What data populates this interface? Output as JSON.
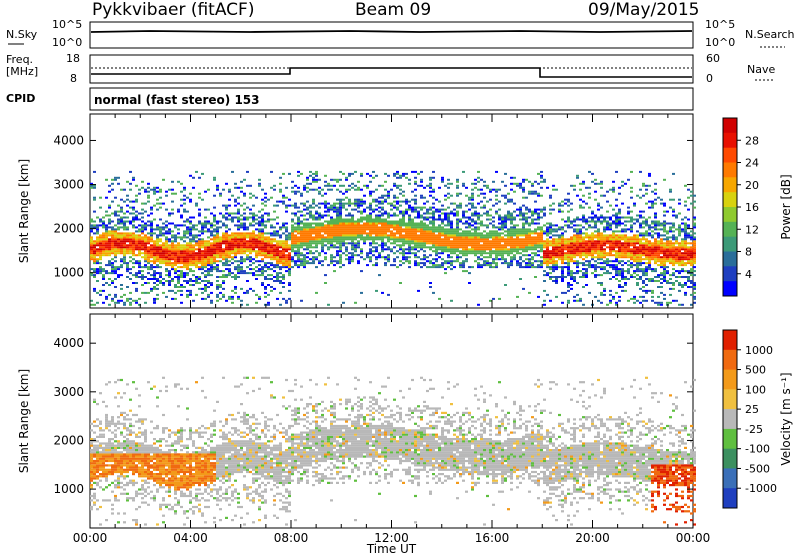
{
  "header": {
    "station": "Pykkvibaer (fitACF)",
    "beam": "Beam 09",
    "date": "09/May/2015"
  },
  "status_panels": {
    "nsky_label": "N.Sky",
    "nsky_ticks": [
      "10^5",
      "10^0"
    ],
    "nsearch_label": "N.Search",
    "nsearch_ticks": [
      "10^5",
      "10^0"
    ],
    "freq_label_1": "Freq.",
    "freq_label_2": "[MHz]",
    "freq_ticks": [
      "18",
      "8"
    ],
    "nave_label": "Nave",
    "nave_ticks": [
      "60",
      "0"
    ],
    "cpid_label": "CPID",
    "cpid_value": "normal (fast stereo) 153"
  },
  "chart_data": [
    {
      "type": "heatmap",
      "name": "power-panel",
      "ylabel": "Slant Range [km]",
      "ylim": [
        200,
        4600
      ],
      "yticks": [
        1000,
        2000,
        3000,
        4000
      ],
      "xlim": [
        0,
        24
      ],
      "colorbar_label": "Power [dB]",
      "colorbar_ticks": [
        "28",
        "24",
        "20",
        "16",
        "12",
        "8",
        "4"
      ],
      "colors": [
        "#0000ff",
        "#1f3fc0",
        "#2a6e9a",
        "#3c9a78",
        "#55b255",
        "#8fca2f",
        "#d8d20f",
        "#f7a700",
        "#ff7a00",
        "#ff4a00",
        "#e81000",
        "#d00000"
      ],
      "description_bands": [
        {
          "t": [
            0,
            8
          ],
          "range": [
            1000,
            1900
          ],
          "level": "high"
        },
        {
          "t": [
            8,
            18
          ],
          "range": [
            1300,
            2200
          ],
          "level": "medium"
        },
        {
          "t": [
            18,
            24
          ],
          "range": [
            900,
            2000
          ],
          "level": "high"
        }
      ]
    },
    {
      "type": "heatmap",
      "name": "velocity-panel",
      "ylabel": "Slant Range [km]",
      "ylim": [
        200,
        4600
      ],
      "yticks": [
        1000,
        2000,
        3000,
        4000
      ],
      "xlim": [
        0,
        24
      ],
      "xlabel": "Time UT",
      "xticks": [
        "00:00",
        "04:00",
        "08:00",
        "12:00",
        "16:00",
        "20:00",
        "00:00"
      ],
      "colorbar_label": "Velocity [m s⁻¹]",
      "colorbar_ticks": [
        "1000",
        "500",
        "100",
        "25",
        "-25",
        "-100",
        "-500",
        "-1000"
      ],
      "colors": [
        "#1f3fbf",
        "#3a6fb8",
        "#3c9060",
        "#5fbf3f",
        "#b8b8b8",
        "#f0c040",
        "#f39a1a",
        "#f06a10",
        "#e02000"
      ]
    }
  ]
}
